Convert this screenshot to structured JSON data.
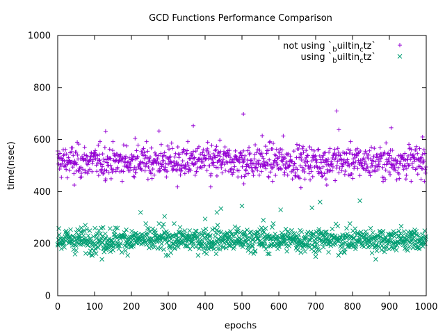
{
  "chart_data": {
    "type": "scatter",
    "title": "GCD Functions Performance Comparison",
    "xlabel": "epochs",
    "ylabel": "time(nsec)",
    "xlim": [
      0,
      1000
    ],
    "ylim": [
      0,
      1000
    ],
    "x_ticks": [
      "0",
      "100",
      "200",
      "300",
      "400",
      "500",
      "600",
      "700",
      "800",
      "900",
      "1000"
    ],
    "y_ticks": [
      "0",
      "200",
      "400",
      "600",
      "800",
      "1000"
    ],
    "grid": false,
    "legend_position": "top-right",
    "series": [
      {
        "name_parts": [
          "not using `",
          "b",
          "uiltin",
          "c",
          "tz`"
        ],
        "marker": "plus",
        "color": "#9400d3",
        "count": 1000,
        "typical_range": [
          450,
          580
        ],
        "center": 515,
        "outliers": [
          {
            "x": 130,
            "y": 632
          },
          {
            "x": 275,
            "y": 633
          },
          {
            "x": 368,
            "y": 653
          },
          {
            "x": 504,
            "y": 698
          },
          {
            "x": 757,
            "y": 710
          },
          {
            "x": 763,
            "y": 638
          },
          {
            "x": 905,
            "y": 645
          },
          {
            "x": 612,
            "y": 614
          },
          {
            "x": 555,
            "y": 615
          },
          {
            "x": 440,
            "y": 598
          },
          {
            "x": 325,
            "y": 418
          },
          {
            "x": 415,
            "y": 418
          },
          {
            "x": 45,
            "y": 425
          },
          {
            "x": 660,
            "y": 415
          },
          {
            "x": 730,
            "y": 425
          },
          {
            "x": 505,
            "y": 430
          },
          {
            "x": 990,
            "y": 610
          },
          {
            "x": 210,
            "y": 605
          }
        ]
      },
      {
        "name_parts": [
          "using `",
          "b",
          "uiltin",
          "c",
          "tz`"
        ],
        "marker": "cross",
        "color": "#009e73",
        "count": 1000,
        "typical_range": [
          165,
          265
        ],
        "center": 215,
        "outliers": [
          {
            "x": 225,
            "y": 320
          },
          {
            "x": 432,
            "y": 320
          },
          {
            "x": 443,
            "y": 335
          },
          {
            "x": 500,
            "y": 345
          },
          {
            "x": 605,
            "y": 330
          },
          {
            "x": 690,
            "y": 338
          },
          {
            "x": 712,
            "y": 360
          },
          {
            "x": 820,
            "y": 365
          },
          {
            "x": 120,
            "y": 140
          },
          {
            "x": 863,
            "y": 140
          },
          {
            "x": 700,
            "y": 150
          },
          {
            "x": 290,
            "y": 305
          },
          {
            "x": 558,
            "y": 290
          },
          {
            "x": 400,
            "y": 295
          }
        ]
      }
    ]
  }
}
